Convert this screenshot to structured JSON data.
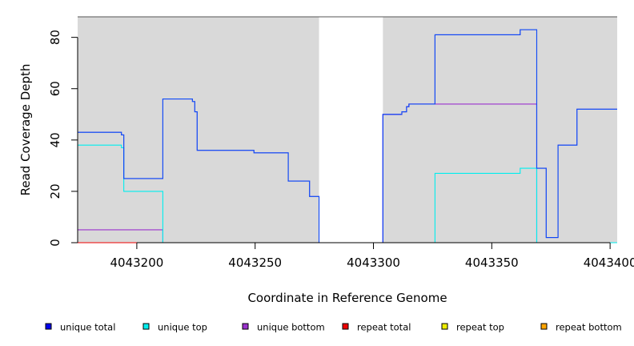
{
  "chart_data": {
    "type": "line",
    "step": true,
    "title": "",
    "xlabel": "Coordinate in Reference Genome",
    "ylabel": "Read Coverage Depth",
    "xlim": [
      4043175,
      4043403
    ],
    "ylim": [
      0,
      88
    ],
    "x_ticks": [
      4043200,
      4043250,
      4043300,
      4043350,
      4043400
    ],
    "y_ticks": [
      0,
      20,
      40,
      60,
      80
    ],
    "shaded_regions": [
      {
        "x0": 4043175,
        "x1": 4043277,
        "color": "#d9d9d9"
      },
      {
        "x0": 4043304,
        "x1": 4043403,
        "color": "#d9d9d9"
      }
    ],
    "legend_position": "bottom",
    "series": [
      {
        "name": "unique total",
        "color": "#0000ee",
        "points": [
          [
            4043175,
            43
          ],
          [
            4043193.5,
            43
          ],
          [
            4043193.5,
            42
          ],
          [
            4043194.5,
            42
          ],
          [
            4043194.5,
            25
          ],
          [
            4043211,
            25
          ],
          [
            4043211,
            56
          ],
          [
            4043223.5,
            56
          ],
          [
            4043223.5,
            55
          ],
          [
            4043224.5,
            55
          ],
          [
            4043224.5,
            51
          ],
          [
            4043225.5,
            51
          ],
          [
            4043225.5,
            36
          ],
          [
            4043249.5,
            36
          ],
          [
            4043249.5,
            35
          ],
          [
            4043264,
            35
          ],
          [
            4043264,
            24
          ],
          [
            4043273,
            24
          ],
          [
            4043273,
            18
          ],
          [
            4043277,
            18
          ],
          [
            4043277,
            0
          ],
          [
            4043304,
            0
          ],
          [
            4043304,
            50
          ],
          [
            4043312,
            50
          ],
          [
            4043312,
            51
          ],
          [
            4043314,
            51
          ],
          [
            4043314,
            53
          ],
          [
            4043315,
            53
          ],
          [
            4043315,
            54
          ],
          [
            4043326,
            54
          ],
          [
            4043326,
            81
          ],
          [
            4043362,
            81
          ],
          [
            4043362,
            83
          ],
          [
            4043369,
            83
          ],
          [
            4043369,
            29
          ],
          [
            4043373,
            29
          ],
          [
            4043373,
            2
          ],
          [
            4043378,
            2
          ],
          [
            4043378,
            38
          ],
          [
            4043386,
            38
          ],
          [
            4043386,
            52
          ],
          [
            4043403,
            52
          ]
        ]
      },
      {
        "name": "unique top",
        "color": "#00eeee",
        "points": [
          [
            4043175,
            38
          ],
          [
            4043193.5,
            38
          ],
          [
            4043193.5,
            37
          ],
          [
            4043194.5,
            37
          ],
          [
            4043194.5,
            20
          ],
          [
            4043211,
            20
          ],
          [
            4043211,
            0
          ],
          [
            4043326,
            0
          ],
          [
            4043326,
            27
          ],
          [
            4043362,
            27
          ],
          [
            4043362,
            29
          ],
          [
            4043369,
            29
          ],
          [
            4043369,
            0
          ],
          [
            4043403,
            0
          ]
        ]
      },
      {
        "name": "unique bottom",
        "color": "#9a32cd",
        "points": [
          [
            4043175,
            5
          ],
          [
            4043211,
            5
          ],
          [
            4043211,
            0
          ],
          [
            4043304,
            0
          ],
          [
            4043304,
            50
          ],
          [
            4043312,
            50
          ],
          [
            4043312,
            51
          ],
          [
            4043314,
            51
          ],
          [
            4043314,
            53
          ],
          [
            4043315,
            53
          ],
          [
            4043315,
            54
          ],
          [
            4043369,
            54
          ],
          [
            4043369,
            0
          ],
          [
            4043403,
            0
          ]
        ]
      },
      {
        "name": "repeat total",
        "color": "#ee0000",
        "points": [
          [
            4043175,
            0
          ],
          [
            4043403,
            0
          ]
        ]
      },
      {
        "name": "repeat top",
        "color": "#eeee00",
        "points": [
          [
            4043175,
            0
          ],
          [
            4043403,
            0
          ]
        ]
      },
      {
        "name": "repeat bottom",
        "color": "#ffa500",
        "points": [
          [
            4043175,
            0
          ],
          [
            4043403,
            0
          ]
        ]
      }
    ]
  }
}
